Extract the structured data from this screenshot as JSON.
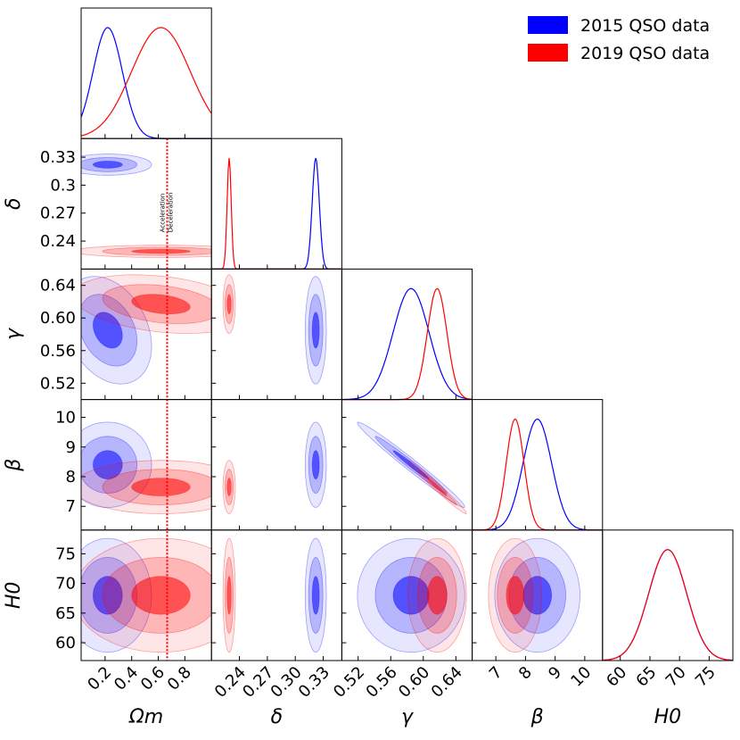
{
  "chart_data": {
    "type": "corner",
    "parameters": [
      {
        "key": "om",
        "label": "Ωm",
        "ticks": [
          "0.2",
          "0.4",
          "0.6",
          "0.8"
        ],
        "tick_values": [
          0.2,
          0.4,
          0.6,
          0.8
        ],
        "range": [
          0.02,
          1.0
        ]
      },
      {
        "key": "delta",
        "label": "δ",
        "ticks": [
          "0.24",
          "0.27",
          "0.30",
          "0.33"
        ],
        "y_ticks": [
          "0.33",
          "0.3",
          "0.27",
          "0.24"
        ],
        "tick_values": [
          0.24,
          0.27,
          0.3,
          0.33
        ],
        "range": [
          0.21,
          0.35
        ]
      },
      {
        "key": "gamma",
        "label": "γ",
        "ticks": [
          "0.52",
          "0.56",
          "0.60",
          "0.64"
        ],
        "tick_values": [
          0.52,
          0.56,
          0.6,
          0.64
        ],
        "range": [
          0.5,
          0.66
        ]
      },
      {
        "key": "beta",
        "label": "β",
        "ticks": [
          "7",
          "8",
          "9",
          "10"
        ],
        "tick_values": [
          7,
          8,
          9,
          10
        ],
        "range": [
          6.2,
          10.6
        ]
      },
      {
        "key": "h0",
        "label": "H0",
        "ticks": [
          "60",
          "65",
          "70",
          "75"
        ],
        "tick_values": [
          60,
          65,
          70,
          75
        ],
        "range": [
          57,
          79
        ]
      }
    ],
    "series": [
      {
        "name": "2015 QSO data",
        "color": "#0000ff",
        "mean": {
          "om": 0.22,
          "delta": 0.322,
          "gamma": 0.585,
          "beta": 8.4,
          "h0": 68
        },
        "sigma": {
          "om": 0.11,
          "delta": 0.0038,
          "gamma": 0.022,
          "beta": 0.48,
          "h0": 3.2
        }
      },
      {
        "name": "2019 QSO data",
        "color": "#ff0000",
        "mean": {
          "om": 0.62,
          "delta": 0.229,
          "gamma": 0.617,
          "beta": 7.65,
          "h0": 68
        },
        "sigma": {
          "om": 0.22,
          "delta": 0.0022,
          "gamma": 0.012,
          "beta": 0.3,
          "h0": 3.2
        }
      }
    ],
    "reference_line": {
      "parameter": "om",
      "value": 0.667,
      "labels": [
        "Acceleration",
        "Deceleration"
      ],
      "color": "#ff0000",
      "style": "dotted"
    },
    "legend": {
      "position": "top-right",
      "entries": [
        "2015 QSO data",
        "2019 QSO data"
      ]
    }
  }
}
